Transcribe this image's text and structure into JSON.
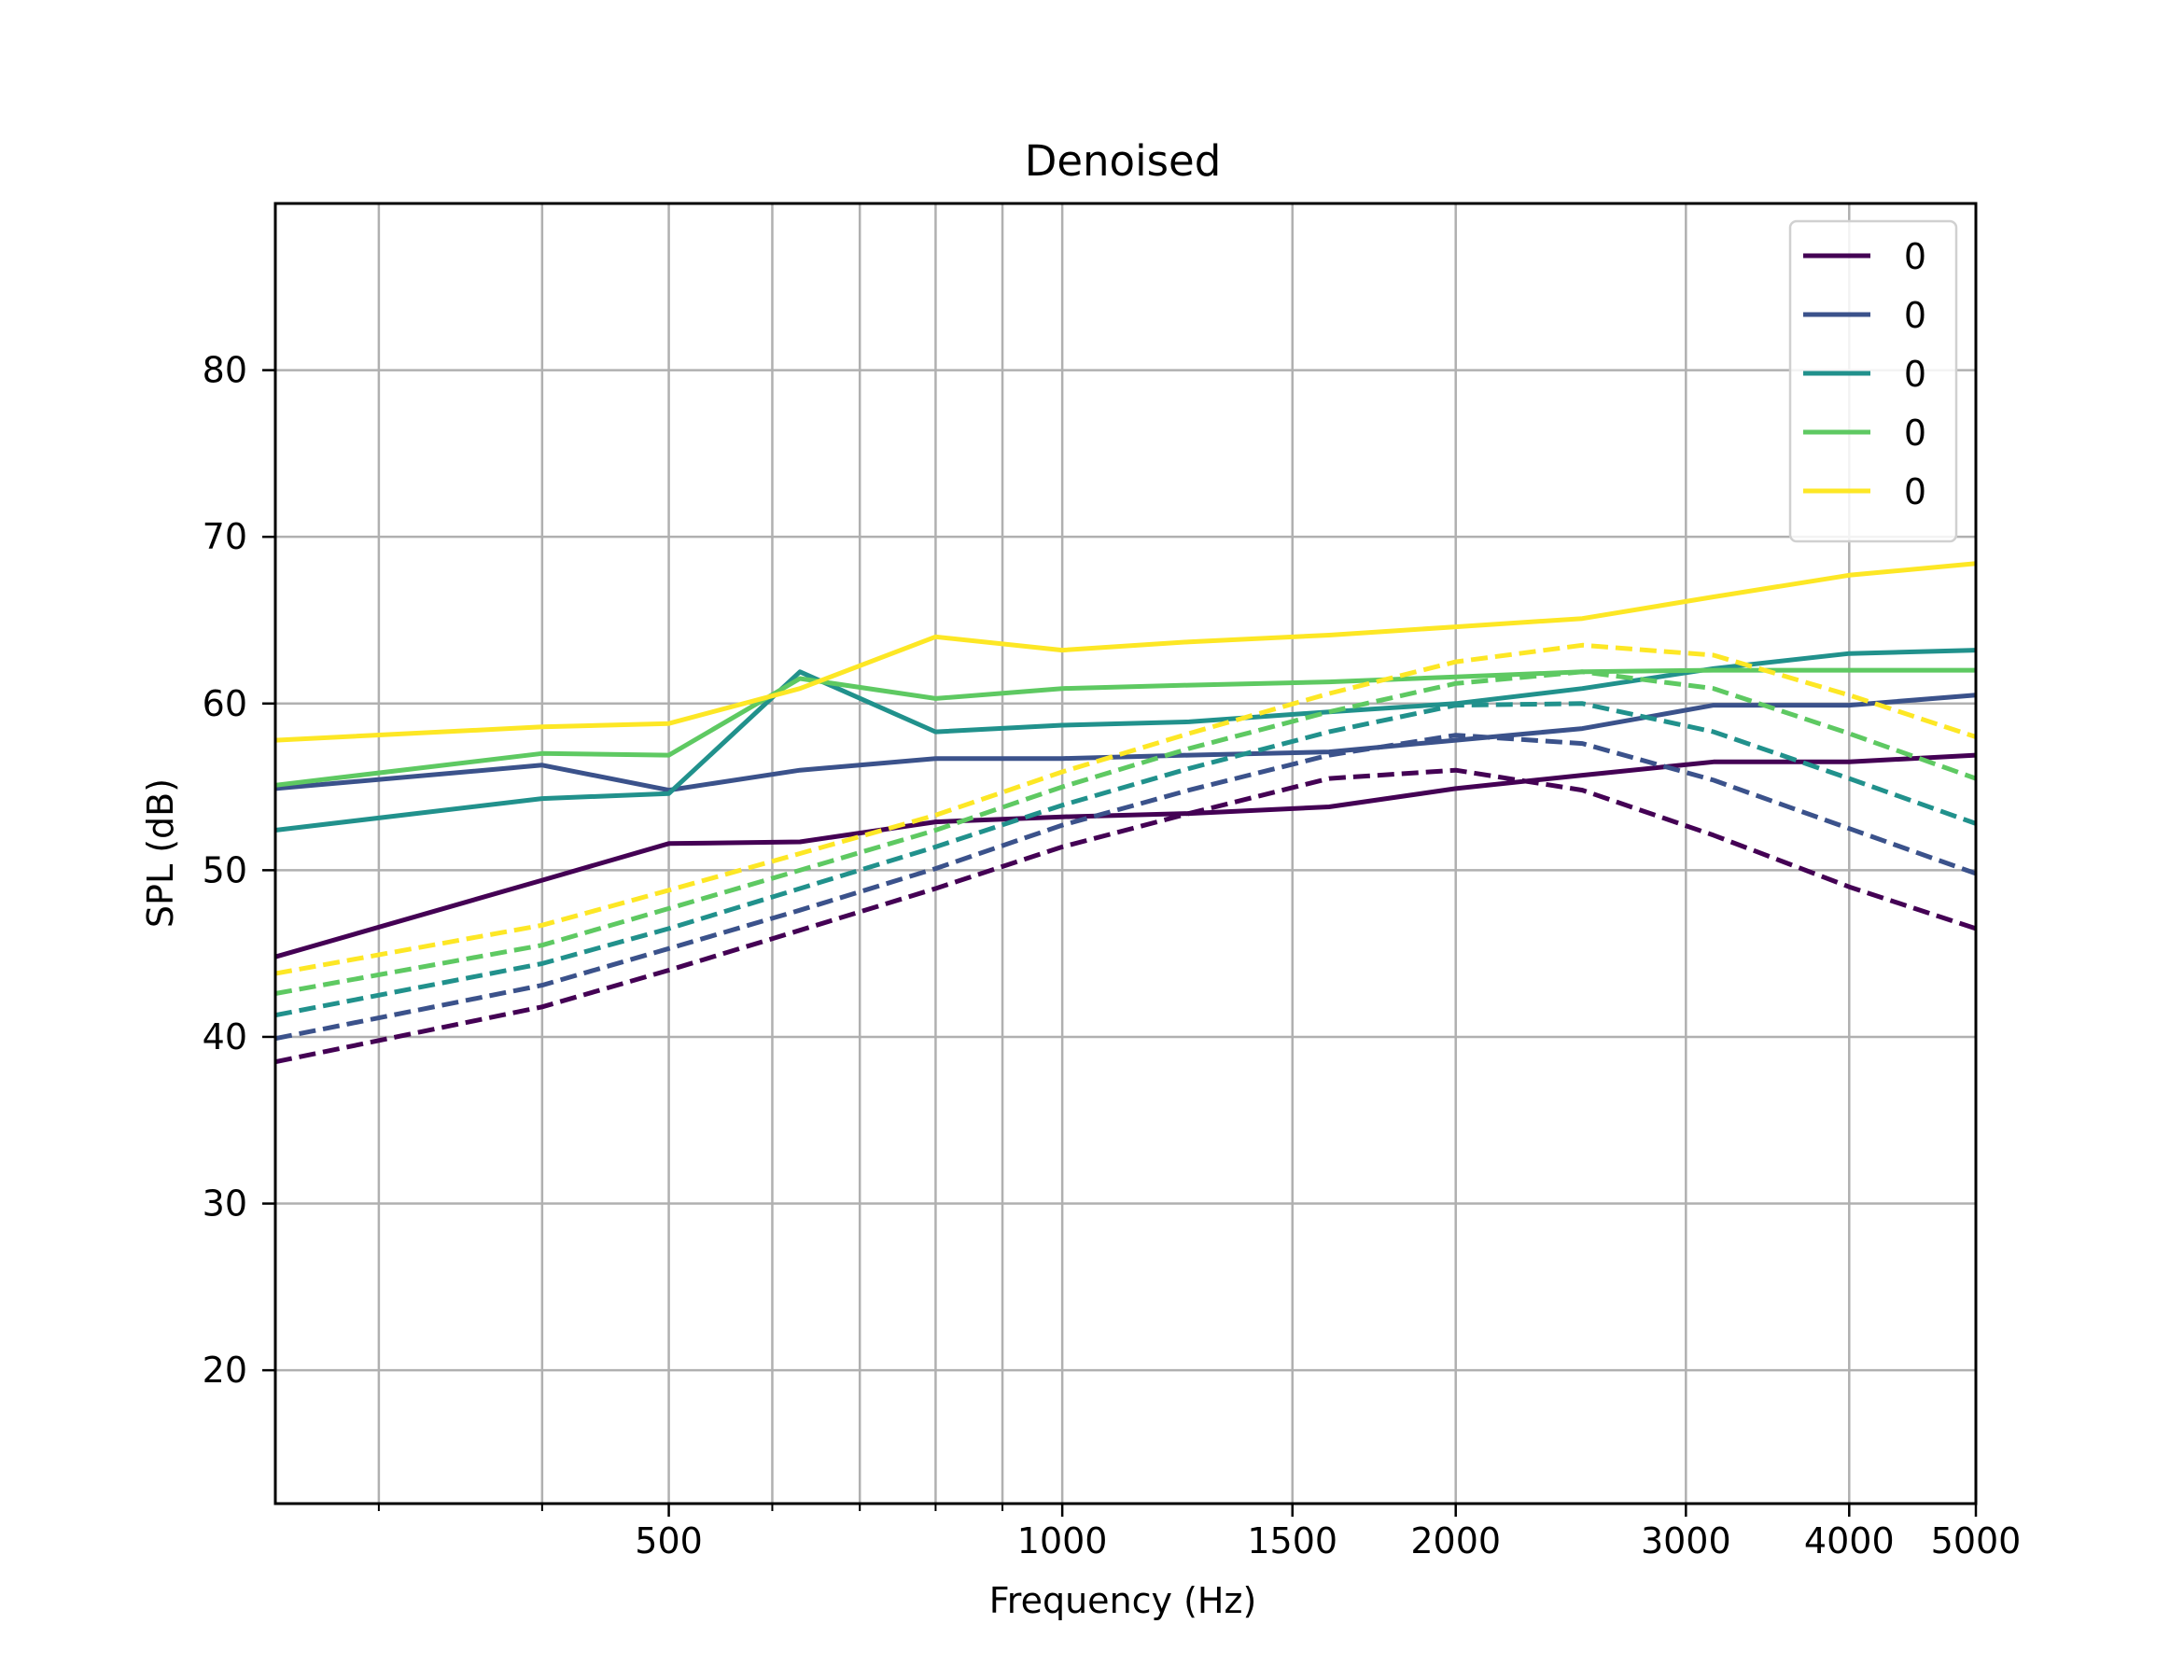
{
  "chart_data": {
    "type": "line",
    "title": "Denoised",
    "xlabel": "Frequency (Hz)",
    "ylabel": "SPL (dB)",
    "xscale": "log",
    "xlim": [
      250,
      5000
    ],
    "ylim": [
      12,
      90
    ],
    "xticks": [
      500,
      1000,
      1500,
      2000,
      3000,
      4000,
      5000
    ],
    "yticks": [
      20,
      30,
      40,
      50,
      60,
      70,
      80
    ],
    "grid": true,
    "legend_position": "top-right",
    "x": [
      250,
      400,
      500,
      630,
      800,
      1000,
      1250,
      1600,
      2000,
      2500,
      3150,
      4000,
      5000
    ],
    "series": [
      {
        "name": "0",
        "style": "solid",
        "color": "#440154",
        "values": [
          44.8,
          49.4,
          51.6,
          51.7,
          52.9,
          53.2,
          53.4,
          53.8,
          54.9,
          55.7,
          56.5,
          56.5,
          56.9
        ]
      },
      {
        "name": "0",
        "style": "solid",
        "color": "#3b528b",
        "values": [
          54.9,
          56.3,
          54.8,
          56.0,
          56.7,
          56.7,
          56.9,
          57.1,
          57.8,
          58.5,
          59.9,
          59.9,
          60.5
        ]
      },
      {
        "name": "0",
        "style": "solid",
        "color": "#21918c",
        "values": [
          52.4,
          54.3,
          54.6,
          61.9,
          58.3,
          58.7,
          58.9,
          59.5,
          60.0,
          60.9,
          62.1,
          63.0,
          63.2
        ]
      },
      {
        "name": "0",
        "style": "solid",
        "color": "#5ec962",
        "values": [
          55.1,
          57.0,
          56.9,
          61.5,
          60.3,
          60.9,
          61.1,
          61.3,
          61.6,
          61.9,
          62.0,
          62.0,
          62.0
        ]
      },
      {
        "name": "0",
        "style": "solid",
        "color": "#fde725",
        "values": [
          57.8,
          58.6,
          58.8,
          60.9,
          64.0,
          63.2,
          63.7,
          64.1,
          64.6,
          65.1,
          66.4,
          67.7,
          68.4
        ]
      },
      {
        "style": "dashed",
        "color": "#440154",
        "values": [
          38.5,
          41.8,
          44.0,
          46.4,
          48.9,
          51.4,
          53.4,
          55.5,
          56.0,
          54.8,
          52.1,
          49.0,
          46.5
        ]
      },
      {
        "style": "dashed",
        "color": "#3b528b",
        "values": [
          39.9,
          43.1,
          45.3,
          47.6,
          50.1,
          52.7,
          54.8,
          56.9,
          58.1,
          57.6,
          55.4,
          52.5,
          49.8
        ]
      },
      {
        "style": "dashed",
        "color": "#21918c",
        "values": [
          41.3,
          44.4,
          46.5,
          48.9,
          51.4,
          53.9,
          56.1,
          58.3,
          59.9,
          60.0,
          58.3,
          55.5,
          52.8
        ]
      },
      {
        "style": "dashed",
        "color": "#5ec962",
        "values": [
          42.6,
          45.5,
          47.7,
          50.0,
          52.4,
          55.0,
          57.3,
          59.5,
          61.2,
          61.9,
          60.9,
          58.2,
          55.5
        ]
      },
      {
        "style": "dashed",
        "color": "#fde725",
        "values": [
          43.8,
          46.7,
          48.8,
          51.0,
          53.3,
          55.9,
          58.2,
          60.6,
          62.5,
          63.5,
          62.9,
          60.5,
          58.0
        ]
      }
    ]
  }
}
